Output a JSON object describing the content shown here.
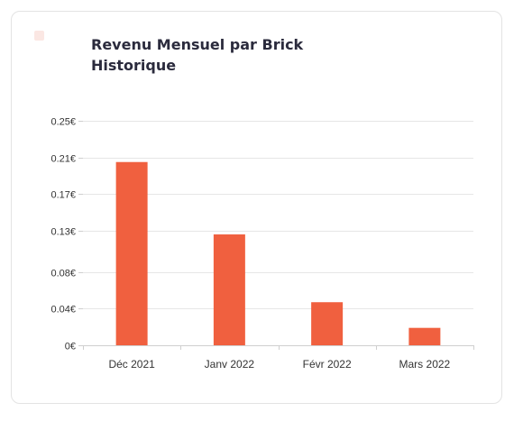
{
  "card": {
    "title_line1": "Revenu Mensuel par Brick",
    "title_line2": "Historique"
  },
  "colors": {
    "bar": "#f0603f",
    "grid": "#e6e6e6",
    "axis": "#cfcfcf",
    "icon": "#fbe7e3"
  },
  "chart_data": {
    "type": "bar",
    "title": "Revenu Mensuel par Brick Historique",
    "categories": [
      "Déc 2021",
      "Janv 2022",
      "Févr 2022",
      "Mars 2022"
    ],
    "values": [
      0.2,
      0.121,
      0.047,
      0.019
    ],
    "yticks": [
      "0€",
      "0.04€",
      "0.08€",
      "0.13€",
      "0.17€",
      "0.21€",
      "0.25€"
    ],
    "ytick_values": [
      0,
      0.04,
      0.08,
      0.125,
      0.165,
      0.205,
      0.245
    ],
    "ylim": [
      0,
      0.245
    ],
    "grid": true,
    "xlabel": "",
    "ylabel": ""
  }
}
